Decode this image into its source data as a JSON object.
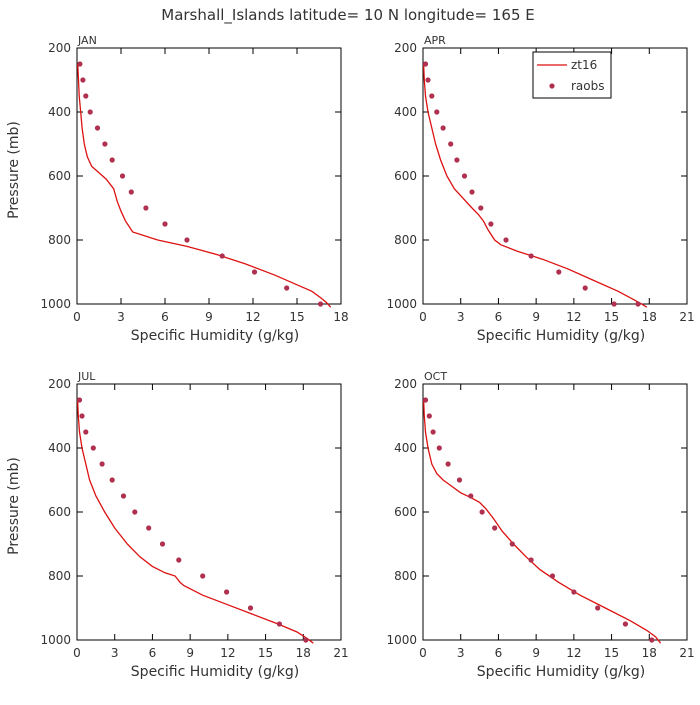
{
  "figure": {
    "title": "Marshall_Islands  latitude= 10 N longitude= 165 E"
  },
  "colors": {
    "model": "#dd1111",
    "obs": "#b03050",
    "axis": "#000000",
    "text": "#333333"
  },
  "legend": {
    "model": "zt16",
    "obs": "raobs"
  },
  "chart_data": [
    {
      "type": "scatter",
      "month": "JAN",
      "xlabel": "Specific Humidity (g/kg)",
      "ylabel": "Pressure (mb)",
      "xlim": [
        0,
        18
      ],
      "ylim": [
        200,
        1000
      ],
      "y_inverted": true,
      "xticks": [
        "0",
        "3",
        "6",
        "9",
        "12",
        "15",
        "18"
      ],
      "yticks": [
        "200",
        "400",
        "600",
        "800",
        "1000"
      ],
      "series": [
        {
          "name": "zt16",
          "style": "line",
          "x": [
            0.05,
            0.1,
            0.15,
            0.25,
            0.35,
            0.5,
            0.7,
            1.0,
            1.5,
            2.0,
            2.5,
            2.75,
            3.0,
            3.3,
            3.8,
            5.5,
            7.5,
            9.5,
            11.5,
            13.5,
            15.0,
            16.0,
            16.6,
            17.0,
            17.3
          ],
          "y": [
            250,
            300,
            350,
            400,
            450,
            500,
            540,
            570,
            590,
            610,
            640,
            680,
            710,
            740,
            775,
            800,
            820,
            845,
            875,
            910,
            940,
            960,
            980,
            995,
            1010
          ]
        },
        {
          "name": "raobs",
          "style": "markers",
          "x": [
            0.2,
            0.4,
            0.6,
            0.9,
            1.4,
            1.9,
            2.4,
            3.1,
            3.7,
            4.7,
            6.0,
            7.5,
            9.9,
            12.1,
            14.3,
            16.6
          ],
          "y": [
            250,
            300,
            350,
            400,
            450,
            500,
            550,
            600,
            650,
            700,
            750,
            800,
            850,
            900,
            950,
            1000
          ]
        }
      ]
    },
    {
      "type": "scatter",
      "month": "APR",
      "xlabel": "Specific Humidity (g/kg)",
      "ylabel": "",
      "xlim": [
        0,
        21
      ],
      "ylim": [
        200,
        1000
      ],
      "y_inverted": true,
      "xticks": [
        "0",
        "3",
        "6",
        "9",
        "12",
        "15",
        "18",
        "21"
      ],
      "yticks": [
        "200",
        "400",
        "600",
        "800",
        "1000"
      ],
      "series": [
        {
          "name": "zt16",
          "style": "line",
          "x": [
            0.05,
            0.1,
            0.2,
            0.4,
            0.7,
            1.0,
            1.4,
            1.9,
            2.5,
            3.2,
            3.9,
            4.4,
            4.8,
            5.2,
            5.7,
            6.2,
            7.5,
            9.5,
            11.5,
            13.5,
            15.5,
            16.7,
            17.4,
            17.8
          ],
          "y": [
            250,
            300,
            350,
            400,
            450,
            500,
            550,
            600,
            640,
            670,
            700,
            720,
            740,
            770,
            800,
            815,
            835,
            860,
            890,
            925,
            960,
            985,
            1000,
            1010
          ]
        },
        {
          "name": "raobs",
          "style": "markers",
          "x": [
            0.2,
            0.4,
            0.7,
            1.1,
            1.6,
            2.2,
            2.7,
            3.3,
            3.9,
            4.6,
            5.4,
            6.6,
            8.6,
            10.8,
            12.9,
            15.2,
            17.1
          ],
          "y": [
            250,
            300,
            350,
            400,
            450,
            500,
            550,
            600,
            650,
            700,
            750,
            800,
            850,
            900,
            950,
            1000,
            1000
          ]
        }
      ]
    },
    {
      "type": "scatter",
      "month": "JUL",
      "xlabel": "Specific Humidity (g/kg)",
      "ylabel": "Pressure (mb)",
      "xlim": [
        0,
        21
      ],
      "ylim": [
        200,
        1000
      ],
      "y_inverted": true,
      "xticks": [
        "0",
        "3",
        "6",
        "9",
        "12",
        "15",
        "18",
        "21"
      ],
      "yticks": [
        "200",
        "400",
        "600",
        "800",
        "1000"
      ],
      "series": [
        {
          "name": "zt16",
          "style": "line",
          "x": [
            0.05,
            0.1,
            0.2,
            0.4,
            0.7,
            1.0,
            1.5,
            2.2,
            3.0,
            4.0,
            5.0,
            6.0,
            7.0,
            7.8,
            8.2,
            8.5,
            10.0,
            12.0,
            14.0,
            16.0,
            17.5,
            18.3,
            18.8
          ],
          "y": [
            250,
            300,
            350,
            400,
            450,
            500,
            550,
            600,
            650,
            700,
            740,
            770,
            790,
            800,
            820,
            830,
            860,
            890,
            920,
            950,
            975,
            995,
            1010
          ]
        },
        {
          "name": "raobs",
          "style": "markers",
          "x": [
            0.2,
            0.4,
            0.7,
            1.3,
            2.0,
            2.8,
            3.7,
            4.6,
            5.7,
            6.8,
            8.1,
            10.0,
            11.9,
            13.8,
            16.1,
            18.2
          ],
          "y": [
            250,
            300,
            350,
            400,
            450,
            500,
            550,
            600,
            650,
            700,
            750,
            800,
            850,
            900,
            950,
            1000
          ]
        }
      ]
    },
    {
      "type": "scatter",
      "month": "OCT",
      "xlabel": "Specific Humidity (g/kg)",
      "ylabel": "",
      "xlim": [
        0,
        21
      ],
      "ylim": [
        200,
        1000
      ],
      "y_inverted": true,
      "xticks": [
        "0",
        "3",
        "6",
        "9",
        "12",
        "15",
        "18",
        "21"
      ],
      "yticks": [
        "200",
        "400",
        "600",
        "800",
        "1000"
      ],
      "series": [
        {
          "name": "zt16",
          "style": "line",
          "x": [
            0.05,
            0.1,
            0.2,
            0.4,
            0.7,
            1.1,
            1.6,
            2.3,
            3.0,
            3.8,
            4.5,
            5.0,
            5.6,
            6.3,
            7.2,
            8.2,
            9.3,
            10.8,
            12.5,
            14.5,
            16.5,
            17.8,
            18.5,
            18.9
          ],
          "y": [
            250,
            300,
            350,
            400,
            450,
            480,
            500,
            520,
            540,
            555,
            570,
            590,
            620,
            660,
            700,
            740,
            780,
            820,
            860,
            900,
            940,
            970,
            990,
            1010
          ]
        },
        {
          "name": "raobs",
          "style": "markers",
          "x": [
            0.2,
            0.5,
            0.8,
            1.3,
            2.0,
            2.9,
            3.8,
            4.7,
            5.7,
            7.1,
            8.6,
            10.3,
            12.0,
            13.9,
            16.1,
            18.2
          ],
          "y": [
            250,
            300,
            350,
            400,
            450,
            500,
            550,
            600,
            650,
            700,
            750,
            800,
            850,
            900,
            950,
            1000
          ]
        }
      ]
    }
  ]
}
